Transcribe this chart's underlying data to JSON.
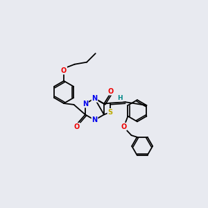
{
  "background_color": "#e8eaf0",
  "atom_colors": {
    "N": "#0000ee",
    "O": "#ee0000",
    "S": "#bbaa00",
    "H": "#008888",
    "C": "#000000"
  },
  "bond_color": "#000000",
  "bond_width": 1.3,
  "figsize": [
    3.0,
    3.0
  ],
  "dpi": 100
}
